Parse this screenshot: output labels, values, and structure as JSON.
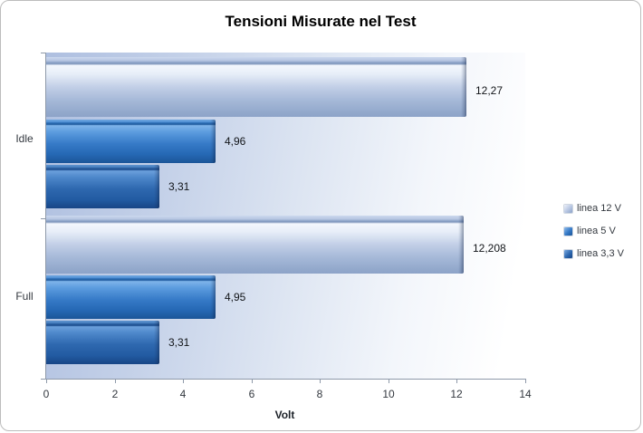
{
  "chart_data": {
    "type": "bar",
    "orientation": "horizontal",
    "title": "Tensioni Misurate nel Test",
    "xlabel": "Volt",
    "xlim": [
      0,
      14
    ],
    "xticks": [
      "0",
      "2",
      "4",
      "6",
      "8",
      "10",
      "12",
      "14"
    ],
    "grid": false,
    "legend_position": "right",
    "categories": [
      "Idle",
      "Full"
    ],
    "series": [
      {
        "name": "linea 12 V",
        "values": [
          12.27,
          12.208
        ],
        "labels": [
          "12,27",
          "12,208"
        ],
        "color": "#aebfdc"
      },
      {
        "name": "linea 5 V",
        "values": [
          4.96,
          4.95
        ],
        "labels": [
          "4,96",
          "4,95"
        ],
        "color": "#2e72bd"
      },
      {
        "name": "linea 3,3 V",
        "values": [
          3.31,
          3.31
        ],
        "labels": [
          "3,31",
          "3,31"
        ],
        "color": "#265ea6"
      }
    ]
  }
}
